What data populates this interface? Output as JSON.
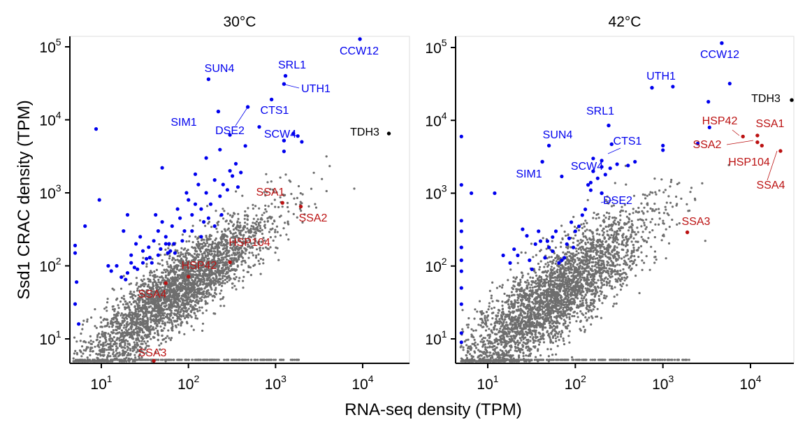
{
  "chart_data": {
    "type": "scatter",
    "xlabel": "RNA-seq density (TPM)",
    "ylabel": "Ssd1 CRAC density (TPM)",
    "x_scale": "log10",
    "y_scale": "log10",
    "xlim": [
      4.5,
      30000
    ],
    "ylim": [
      4.5,
      150000
    ],
    "x_ticks": [
      "10",
      "100",
      "1000",
      "10000"
    ],
    "y_ticks": [
      "10",
      "100",
      "1000",
      "10000",
      "100000"
    ],
    "colors": {
      "bound": "#0000ee",
      "heat_shock": "#bb1111",
      "background": "#6e6e6e",
      "reference": "#000000"
    },
    "panels": [
      {
        "title": "30°C",
        "highlighted": [
          {
            "gene": "CCW12",
            "x": 9300,
            "y": 130000,
            "group": "bound"
          },
          {
            "gene": "SRL1",
            "x": 1300,
            "y": 40000,
            "group": "bound"
          },
          {
            "gene": "UTH1",
            "x": 1250,
            "y": 31000,
            "group": "bound"
          },
          {
            "gene": "SUN4",
            "x": 170,
            "y": 36000,
            "group": "bound"
          },
          {
            "gene": "SIM1",
            "x": 220,
            "y": 13000,
            "group": "bound"
          },
          {
            "gene": "DSE2",
            "x": 480,
            "y": 15000,
            "group": "bound"
          },
          {
            "gene": "CTS1",
            "x": 900,
            "y": 19000,
            "group": "bound"
          },
          {
            "gene": "SCW4",
            "x": 1250,
            "y": 5200,
            "group": "bound"
          },
          {
            "gene": "TDH3",
            "x": 20000,
            "y": 6500,
            "group": "reference"
          },
          {
            "gene": "SSA1",
            "x": 1200,
            "y": 730,
            "group": "heat_shock"
          },
          {
            "gene": "SSA2",
            "x": 1950,
            "y": 650,
            "group": "heat_shock"
          },
          {
            "gene": "HSP104",
            "x": 300,
            "y": 112,
            "group": "heat_shock"
          },
          {
            "gene": "HSP42",
            "x": 100,
            "y": 71,
            "group": "heat_shock"
          },
          {
            "gene": "SSA4",
            "x": 55,
            "y": 58,
            "group": "heat_shock"
          },
          {
            "gene": "SSA3",
            "x": 40,
            "y": 5,
            "group": "heat_shock"
          }
        ],
        "other_bound_points": [
          [
            8.7,
            7500
          ],
          [
            9.5,
            800
          ],
          [
            6.5,
            350
          ],
          [
            5,
            190
          ],
          [
            5,
            150
          ],
          [
            5.2,
            60
          ],
          [
            5,
            30
          ],
          [
            5.5,
            16
          ],
          [
            12,
            100
          ],
          [
            13,
            85
          ],
          [
            15,
            100
          ],
          [
            18,
            300
          ],
          [
            20,
            500
          ],
          [
            22,
            140
          ],
          [
            25,
            200
          ],
          [
            28,
            250
          ],
          [
            30,
            160
          ],
          [
            35,
            180
          ],
          [
            40,
            220
          ],
          [
            42,
            500
          ],
          [
            45,
            300
          ],
          [
            50,
            400
          ],
          [
            55,
            250
          ],
          [
            60,
            200
          ],
          [
            65,
            350
          ],
          [
            70,
            150
          ],
          [
            75,
            600
          ],
          [
            80,
            450
          ],
          [
            90,
            300
          ],
          [
            95,
            1000
          ],
          [
            100,
            800
          ],
          [
            110,
            500
          ],
          [
            120,
            700
          ],
          [
            130,
            1300
          ],
          [
            140,
            600
          ],
          [
            150,
            400
          ],
          [
            160,
            1000
          ],
          [
            180,
            700
          ],
          [
            200,
            1500
          ],
          [
            230,
            900
          ],
          [
            250,
            1300
          ],
          [
            280,
            1100
          ],
          [
            300,
            2000
          ],
          [
            320,
            1700
          ],
          [
            350,
            2500
          ],
          [
            370,
            1200
          ],
          [
            400,
            1900
          ],
          [
            50,
            2200
          ],
          [
            120,
            1800
          ],
          [
            160,
            3000
          ],
          [
            230,
            3900
          ],
          [
            300,
            6200
          ],
          [
            450,
            4400
          ],
          [
            650,
            8000
          ],
          [
            1250,
            3700
          ],
          [
            1600,
            6500
          ],
          [
            1800,
            6000
          ],
          [
            2000,
            5000
          ],
          [
            17,
            70
          ],
          [
            19,
            65
          ],
          [
            20,
            80
          ],
          [
            22,
            110
          ],
          [
            24,
            95
          ],
          [
            26,
            90
          ],
          [
            30,
            110
          ],
          [
            33,
            125
          ],
          [
            36,
            130
          ],
          [
            38,
            110
          ],
          [
            45,
            140
          ],
          [
            48,
            170
          ],
          [
            55,
            200
          ],
          [
            58,
            150
          ],
          [
            62,
            160
          ],
          [
            68,
            200
          ],
          [
            85,
            220
          ],
          [
            110,
            300
          ],
          [
            140,
            250
          ],
          [
            170,
            450
          ],
          [
            200,
            350
          ],
          [
            240,
            500
          ]
        ]
      },
      {
        "title": "42°C",
        "highlighted": [
          {
            "gene": "CCW12",
            "x": 4700,
            "y": 115000,
            "group": "bound"
          },
          {
            "gene": "UTH1",
            "x": 750,
            "y": 28000,
            "group": "bound"
          },
          {
            "gene": "SRL1",
            "x": 240,
            "y": 8500,
            "group": "bound"
          },
          {
            "gene": "SUN4",
            "x": 50,
            "y": 4500,
            "group": "bound"
          },
          {
            "gene": "CTS1",
            "x": 260,
            "y": 4700,
            "group": "bound"
          },
          {
            "gene": "SIM1",
            "x": 42,
            "y": 2700,
            "group": "bound"
          },
          {
            "gene": "SCW4",
            "x": 160,
            "y": 2000,
            "group": "bound"
          },
          {
            "gene": "DSE2",
            "x": 200,
            "y": 1000,
            "group": "bound"
          },
          {
            "gene": "TDH3",
            "x": 31000,
            "y": 19000,
            "group": "reference"
          },
          {
            "gene": "HSP42",
            "x": 8200,
            "y": 6000,
            "group": "heat_shock"
          },
          {
            "gene": "SSA1",
            "x": 12000,
            "y": 6200,
            "group": "heat_shock"
          },
          {
            "gene": "SSA2",
            "x": 12000,
            "y": 5000,
            "group": "heat_shock"
          },
          {
            "gene": "HSP104",
            "x": 13500,
            "y": 4500,
            "group": "heat_shock"
          },
          {
            "gene": "SSA4",
            "x": 22000,
            "y": 3800,
            "group": "heat_shock"
          },
          {
            "gene": "SSA3",
            "x": 1900,
            "y": 290,
            "group": "heat_shock"
          }
        ],
        "other_bound_points": [
          [
            5,
            6000
          ],
          [
            5,
            1300
          ],
          [
            5,
            420
          ],
          [
            5,
            300
          ],
          [
            5,
            180
          ],
          [
            5,
            120
          ],
          [
            5,
            85
          ],
          [
            5,
            50
          ],
          [
            5,
            30
          ],
          [
            5,
            12
          ],
          [
            5,
            9
          ],
          [
            6.5,
            1000
          ],
          [
            12,
            1000
          ],
          [
            15,
            140
          ],
          [
            18,
            110
          ],
          [
            20,
            170
          ],
          [
            22,
            140
          ],
          [
            25,
            320
          ],
          [
            28,
            260
          ],
          [
            30,
            120
          ],
          [
            32,
            90
          ],
          [
            35,
            200
          ],
          [
            38,
            300
          ],
          [
            40,
            220
          ],
          [
            45,
            130
          ],
          [
            50,
            180
          ],
          [
            55,
            250
          ],
          [
            60,
            300
          ],
          [
            70,
            120
          ],
          [
            80,
            200
          ],
          [
            90,
            400
          ],
          [
            100,
            300
          ],
          [
            110,
            350
          ],
          [
            120,
            500
          ],
          [
            130,
            600
          ],
          [
            140,
            1300
          ],
          [
            150,
            1100
          ],
          [
            180,
            1600
          ],
          [
            200,
            2300
          ],
          [
            220,
            1800
          ],
          [
            250,
            2200
          ],
          [
            300,
            2500
          ],
          [
            400,
            2400
          ],
          [
            480,
            2700
          ],
          [
            1000,
            4500
          ],
          [
            1300,
            29000
          ],
          [
            3300,
            18000
          ],
          [
            3400,
            8000
          ],
          [
            5800,
            32000
          ],
          [
            1000,
            3900
          ],
          [
            2500,
            4800
          ],
          [
            70,
            1700
          ],
          [
            150,
            1400
          ],
          [
            160,
            3000
          ],
          [
            200,
            2800
          ],
          [
            48,
            220
          ],
          [
            55,
            160
          ],
          [
            65,
            110
          ],
          [
            75,
            130
          ],
          [
            85,
            240
          ],
          [
            95,
            180
          ]
        ]
      }
    ]
  }
}
